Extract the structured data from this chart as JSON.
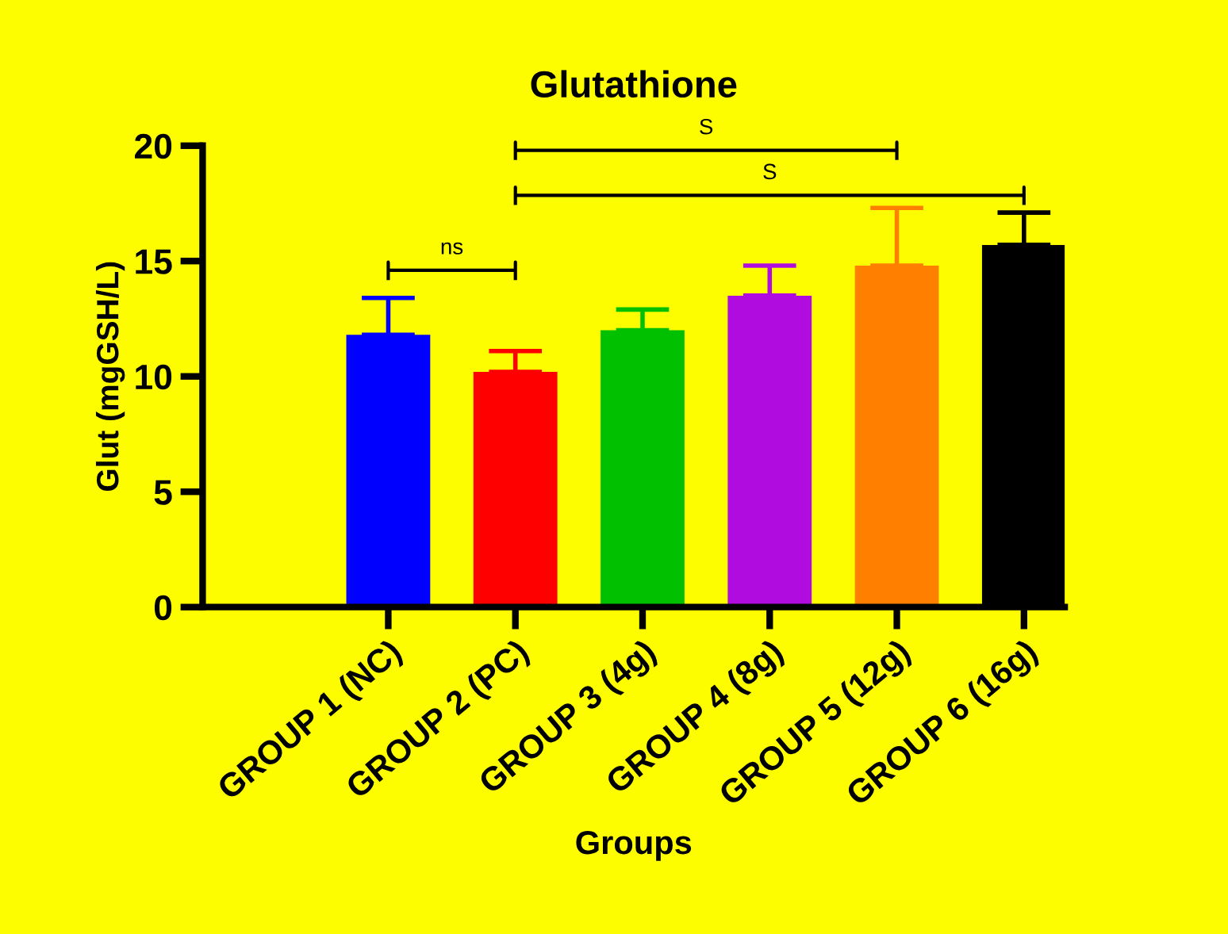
{
  "chart_data": {
    "type": "bar",
    "title": "Glutathione",
    "xlabel": "Groups",
    "ylabel": "Glut (mgGSH/L)",
    "categories": [
      "GROUP 1 (NC)",
      "GROUP 2 (PC)",
      "GROUP 3 (4g)",
      "GROUP 4 (8g)",
      "GROUP 5 (12g)",
      "GROUP 6 (16g)"
    ],
    "values": [
      11.8,
      10.2,
      12.0,
      13.5,
      14.8,
      15.7
    ],
    "errors": [
      [
        11.8,
        13.4
      ],
      [
        10.2,
        11.1
      ],
      [
        12.0,
        12.9
      ],
      [
        13.5,
        14.8
      ],
      [
        14.8,
        17.3
      ],
      [
        15.7,
        17.1
      ]
    ],
    "colors": [
      "#0000ff",
      "#ff0000",
      "#00c000",
      "#b00ce0",
      "#ff8000",
      "#000000"
    ],
    "ylim": [
      0,
      20
    ],
    "yticks": [
      0,
      5,
      10,
      15,
      20
    ],
    "grid": false,
    "legend": false,
    "annotations": [
      "ns",
      "S",
      "S"
    ]
  }
}
